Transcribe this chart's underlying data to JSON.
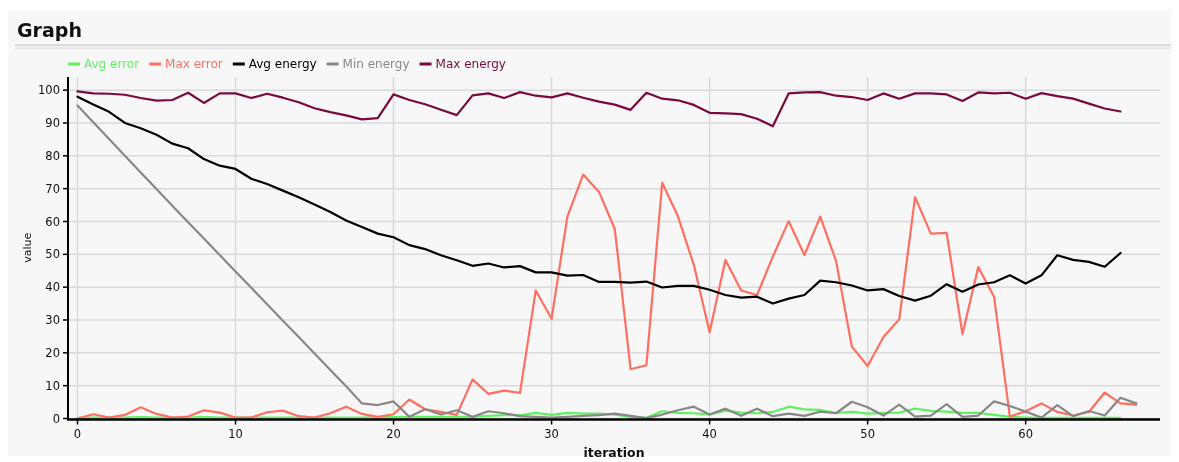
{
  "chart_data": {
    "type": "line",
    "title": "Graph",
    "xlabel": "iteration",
    "ylabel": "value",
    "x": [
      0,
      1,
      2,
      3,
      4,
      5,
      6,
      7,
      8,
      9,
      10,
      11,
      12,
      13,
      14,
      15,
      16,
      17,
      18,
      19,
      20,
      21,
      22,
      23,
      24,
      25,
      26,
      27,
      28,
      29,
      30,
      31,
      32,
      33,
      34,
      35,
      36,
      37,
      38,
      39,
      40,
      41,
      42,
      43,
      44,
      45,
      46,
      47,
      48,
      49,
      50,
      51,
      52,
      53,
      54,
      55,
      56,
      57,
      58,
      59,
      60,
      61,
      62,
      63,
      64,
      65,
      66,
      67
    ],
    "xlim": [
      -0.6,
      68.5
    ],
    "ylim": [
      0,
      104
    ],
    "xticks": [
      0,
      10,
      20,
      30,
      40,
      50,
      60
    ],
    "yticks": [
      0,
      10,
      20,
      30,
      40,
      50,
      60,
      70,
      80,
      90,
      100
    ],
    "grid": true,
    "legend": "top left",
    "series": [
      {
        "name": "Avg error",
        "color": "#5ef25e",
        "values": [
          0.2,
          0.3,
          0.3,
          0.3,
          0.4,
          0.3,
          0.3,
          0.3,
          0.4,
          0.3,
          0.3,
          0.3,
          0.3,
          0.3,
          0.3,
          0.3,
          0.3,
          0.3,
          0.3,
          0.4,
          0.4,
          0.5,
          0.5,
          0.5,
          0.5,
          0.5,
          0.8,
          1.0,
          1.0,
          1.7,
          1.1,
          1.7,
          1.5,
          1.5,
          1.2,
          0.5,
          0.2,
          2.2,
          1.7,
          1.6,
          1.2,
          2.4,
          1.8,
          1.6,
          2.0,
          3.6,
          2.8,
          2.6,
          1.7,
          2.0,
          1.5,
          1.7,
          1.8,
          3.0,
          2.3,
          2.1,
          1.7,
          1.7,
          1.1,
          0.5,
          0.3,
          0.2,
          0.2,
          0.2,
          0.2,
          0.2,
          0.2,
          null
        ]
      },
      {
        "name": "Max error",
        "color": "#ff6f61",
        "values": [
          0,
          1.3,
          0.3,
          1.1,
          3.4,
          1.4,
          0.3,
          0.6,
          2.5,
          1.8,
          0.3,
          0.3,
          1.9,
          2.4,
          0.7,
          0.3,
          1.6,
          3.6,
          1.4,
          0.5,
          1.3,
          5.8,
          2.8,
          2.0,
          1.1,
          11.9,
          7.5,
          8.5,
          7.8,
          39.0,
          30.4,
          61.5,
          74.3,
          69.0,
          57.7,
          15.0,
          16.2,
          71.8,
          61.5,
          46.8,
          26.3,
          48.3,
          39.0,
          37.6,
          49.3,
          60.1,
          49.8,
          61.5,
          48.0,
          21.9,
          16.0,
          24.8,
          30.2,
          67.4,
          56.3,
          56.5,
          25.7,
          46.1,
          37.1,
          0.6,
          2.2,
          4.6,
          2.0,
          0.9,
          2.0,
          7.9,
          4.6,
          4.2
        ]
      },
      {
        "name": "Avg energy",
        "color": "#000000",
        "values": [
          98.0,
          95.6,
          93.4,
          90.0,
          88.4,
          86.4,
          83.7,
          82.3,
          79.0,
          77.0,
          76.0,
          73.0,
          71.4,
          69.4,
          67.4,
          65.2,
          62.9,
          60.3,
          58.3,
          56.3,
          55.2,
          52.8,
          51.6,
          49.7,
          48.2,
          46.5,
          47.2,
          46.0,
          46.4,
          44.5,
          44.5,
          43.5,
          43.7,
          41.6,
          41.6,
          41.4,
          41.7,
          39.9,
          40.4,
          40.4,
          39.2,
          37.6,
          36.8,
          37.1,
          35.0,
          36.5,
          37.6,
          42.0,
          41.5,
          40.5,
          39.0,
          39.4,
          37.3,
          35.9,
          37.4,
          40.9,
          38.6,
          40.8,
          41.5,
          43.6,
          41.1,
          43.6,
          49.7,
          48.3,
          47.7,
          46.2,
          50.4,
          null
        ]
      },
      {
        "name": "Min energy",
        "color": "#888888",
        "values": [
          95.3,
          90.2,
          85.1,
          80.0,
          74.9,
          69.9,
          64.8,
          59.8,
          54.8,
          49.8,
          44.8,
          39.8,
          34.8,
          29.8,
          24.8,
          19.8,
          14.8,
          9.8,
          4.6,
          4.1,
          5.2,
          0.5,
          2.8,
          1.2,
          2.5,
          0.5,
          2.2,
          1.6,
          0.7,
          0.5,
          0.3,
          0.5,
          0.8,
          1.0,
          1.5,
          0.8,
          0.1,
          1.2,
          2.5,
          3.6,
          1.2,
          3.0,
          0.8,
          3.0,
          0.7,
          1.5,
          0.8,
          2.1,
          1.6,
          5.1,
          3.4,
          0.9,
          4.2,
          0.6,
          0.9,
          4.4,
          0.5,
          0.9,
          5.2,
          3.8,
          2.1,
          0.3,
          4.1,
          0.7,
          2.3,
          0.9,
          6.3,
          4.6
        ]
      },
      {
        "name": "Max energy",
        "color": "#7b0a3c",
        "values": [
          99.6,
          99.0,
          98.9,
          98.6,
          97.6,
          96.8,
          97.0,
          99.2,
          96.1,
          99.0,
          99.0,
          97.6,
          98.9,
          97.7,
          96.3,
          94.5,
          93.3,
          92.3,
          91.1,
          91.5,
          98.7,
          97.0,
          95.7,
          94.0,
          92.4,
          98.4,
          99.0,
          97.6,
          99.4,
          98.3,
          97.8,
          99.0,
          97.7,
          96.5,
          95.6,
          94.0,
          99.2,
          97.4,
          96.9,
          95.5,
          93.1,
          92.9,
          92.7,
          91.3,
          89.0,
          99.0,
          99.3,
          99.4,
          98.3,
          97.9,
          97.0,
          99.0,
          97.4,
          99.0,
          99.0,
          98.7,
          96.7,
          99.3,
          99.0,
          99.2,
          97.4,
          99.1,
          98.2,
          97.4,
          95.9,
          94.4,
          93.5,
          null
        ]
      }
    ]
  }
}
